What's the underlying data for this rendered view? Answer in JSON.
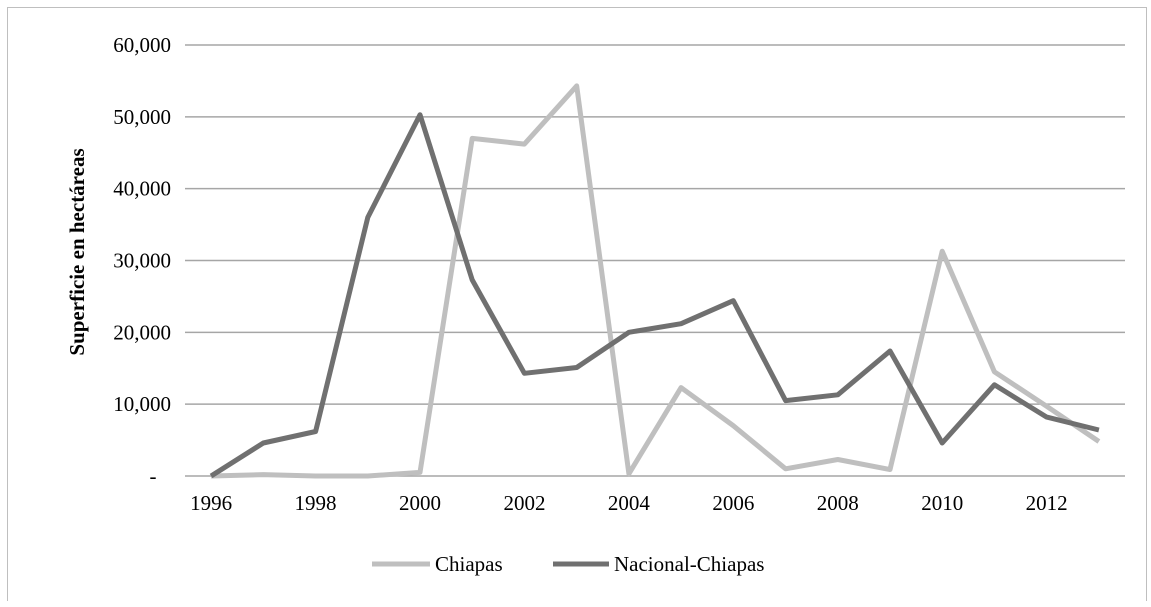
{
  "chart_data": {
    "type": "line",
    "title": "",
    "xlabel": "",
    "ylabel": "Superficie en hectáreas",
    "x": [
      1996,
      1997,
      1998,
      1999,
      2000,
      2001,
      2002,
      2003,
      2004,
      2005,
      2006,
      2007,
      2008,
      2009,
      2010,
      2011,
      2012,
      2013
    ],
    "x_tick_labels": [
      "1996",
      "1998",
      "2000",
      "2002",
      "2004",
      "2006",
      "2008",
      "2010",
      "2012"
    ],
    "y_tick_labels": [
      "-",
      "10,000",
      "20,000",
      "30,000",
      "40,000",
      "50,000",
      "60,000"
    ],
    "ylim": [
      0,
      60000
    ],
    "grid": "horizontal",
    "legend_position": "bottom",
    "series": [
      {
        "name": "Chiapas",
        "color": "#bfbfbf",
        "values": [
          0,
          200,
          0,
          0,
          500,
          47000,
          46200,
          54300,
          300,
          12300,
          7000,
          1000,
          2300,
          900,
          31300,
          14500,
          9700,
          4800
        ]
      },
      {
        "name": "Nacional-Chiapas",
        "color": "#707070",
        "values": [
          0,
          4600,
          6200,
          36000,
          50300,
          27300,
          14300,
          15100,
          20000,
          21200,
          24400,
          10500,
          11300,
          17400,
          4600,
          12700,
          8200,
          6400
        ]
      }
    ]
  }
}
